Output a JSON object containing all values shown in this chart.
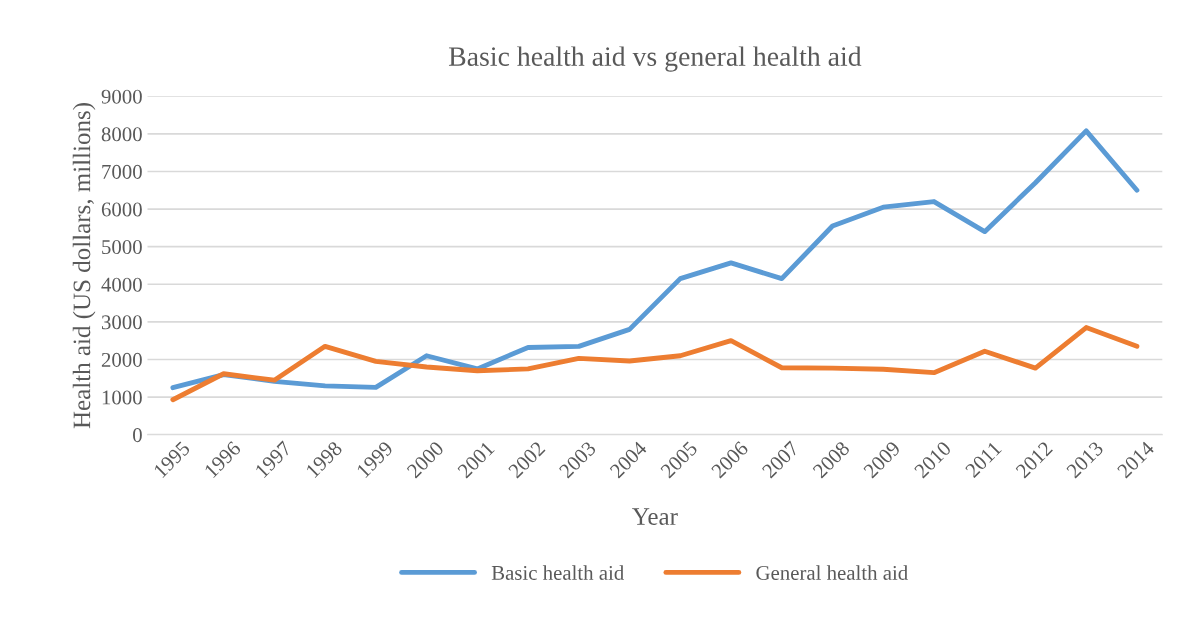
{
  "chart_data": {
    "type": "line",
    "title": "Basic health aid vs general health aid",
    "xlabel": "Year",
    "ylabel": "Health aid (US dollars, millions)",
    "categories": [
      "1995",
      "1996",
      "1997",
      "1998",
      "1999",
      "2000",
      "2001",
      "2002",
      "2003",
      "2004",
      "2005",
      "2006",
      "2007",
      "2008",
      "2009",
      "2010",
      "2011",
      "2012",
      "2013",
      "2014"
    ],
    "series": [
      {
        "name": "Basic health aid",
        "color": "#5b9bd5",
        "values": [
          1250,
          1600,
          1420,
          1300,
          1260,
          2100,
          1750,
          2320,
          2350,
          2800,
          4150,
          4570,
          4150,
          5550,
          6050,
          6200,
          5400,
          6700,
          8080,
          6500
        ]
      },
      {
        "name": "General health aid",
        "color": "#ed7d31",
        "values": [
          930,
          1620,
          1450,
          2350,
          1950,
          1800,
          1700,
          1750,
          2030,
          1960,
          2100,
          2500,
          1780,
          1770,
          1740,
          1650,
          2220,
          1770,
          2850,
          2350
        ]
      }
    ],
    "ylim": [
      0,
      9000
    ],
    "yticks": [
      0,
      1000,
      2000,
      3000,
      4000,
      5000,
      6000,
      7000,
      8000,
      9000
    ],
    "grid": "y",
    "legend": "bottom",
    "marker": "none",
    "line_style": "solid"
  }
}
